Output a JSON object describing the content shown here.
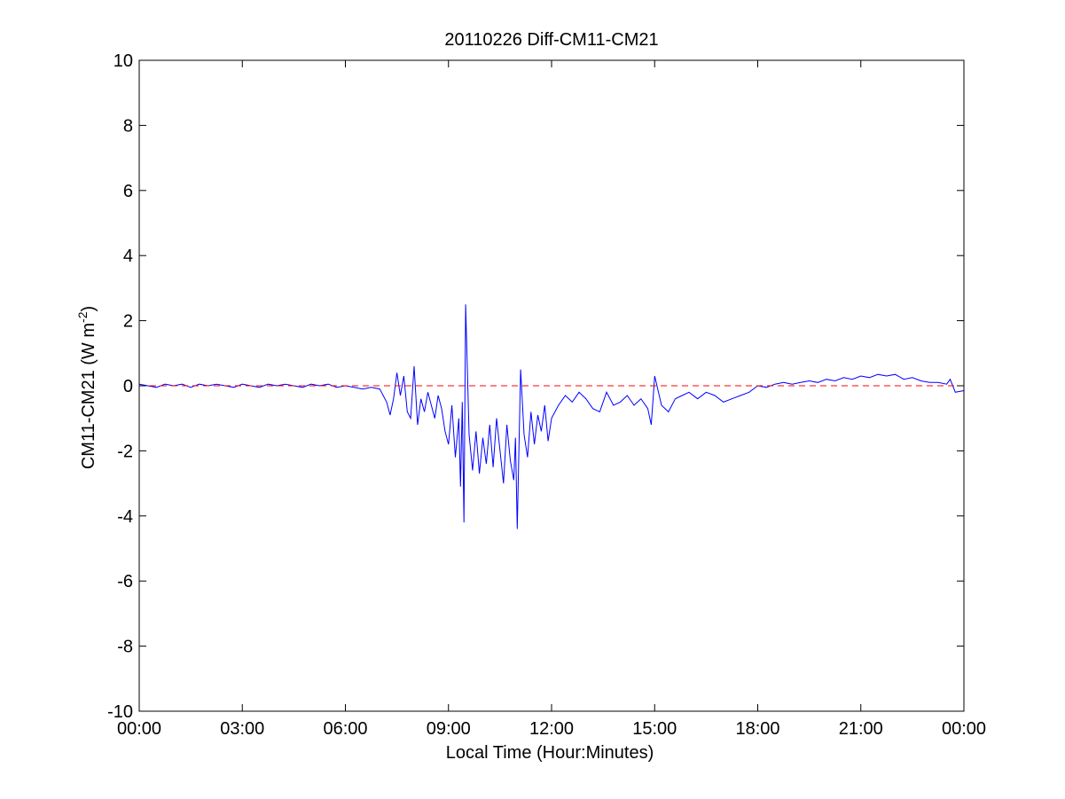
{
  "chart_data": {
    "type": "line",
    "title": "20110226 Diff-CM11-CM21",
    "xlabel": "Local Time (Hour:Minutes)",
    "ylabel_main": "CM11-CM21 (W m",
    "ylabel_sup": "-2",
    "ylabel_close": ")",
    "xlim": [
      0,
      24
    ],
    "ylim": [
      -10,
      10
    ],
    "x_ticks": [
      0,
      3,
      6,
      9,
      12,
      15,
      18,
      21,
      24
    ],
    "x_tick_labels": [
      "00:00",
      "03:00",
      "06:00",
      "09:00",
      "12:00",
      "15:00",
      "18:00",
      "21:00",
      "00:00"
    ],
    "y_ticks": [
      -10,
      -8,
      -6,
      -4,
      -2,
      0,
      2,
      4,
      6,
      8,
      10
    ],
    "y_tick_labels": [
      "-10",
      "-8",
      "-6",
      "-4",
      "-2",
      "0",
      "2",
      "4",
      "6",
      "8",
      "10"
    ],
    "grid": false,
    "series": [
      {
        "color": "#0000ff",
        "x": [
          0.0,
          0.25,
          0.5,
          0.75,
          1.0,
          1.25,
          1.5,
          1.75,
          2.0,
          2.25,
          2.5,
          2.75,
          3.0,
          3.25,
          3.5,
          3.75,
          4.0,
          4.25,
          4.5,
          4.75,
          5.0,
          5.25,
          5.5,
          5.75,
          6.0,
          6.25,
          6.5,
          6.75,
          7.0,
          7.1,
          7.2,
          7.3,
          7.4,
          7.5,
          7.6,
          7.7,
          7.8,
          7.9,
          8.0,
          8.1,
          8.2,
          8.3,
          8.4,
          8.5,
          8.6,
          8.7,
          8.8,
          8.9,
          9.0,
          9.1,
          9.2,
          9.3,
          9.35,
          9.4,
          9.45,
          9.5,
          9.6,
          9.7,
          9.8,
          9.9,
          10.0,
          10.1,
          10.2,
          10.3,
          10.4,
          10.5,
          10.6,
          10.7,
          10.8,
          10.9,
          10.95,
          11.0,
          11.1,
          11.2,
          11.3,
          11.4,
          11.5,
          11.6,
          11.7,
          11.8,
          11.9,
          12.0,
          12.2,
          12.4,
          12.6,
          12.8,
          13.0,
          13.2,
          13.4,
          13.6,
          13.8,
          14.0,
          14.2,
          14.4,
          14.6,
          14.8,
          14.9,
          15.0,
          15.2,
          15.4,
          15.6,
          15.8,
          16.0,
          16.25,
          16.5,
          16.75,
          17.0,
          17.25,
          17.5,
          17.75,
          18.0,
          18.25,
          18.5,
          18.75,
          19.0,
          19.25,
          19.5,
          19.75,
          20.0,
          20.25,
          20.5,
          20.75,
          21.0,
          21.25,
          21.5,
          21.75,
          22.0,
          22.25,
          22.5,
          22.75,
          23.0,
          23.25,
          23.5,
          23.6,
          23.75,
          24.0
        ],
        "y": [
          0.05,
          0.0,
          -0.05,
          0.05,
          0.0,
          0.05,
          -0.05,
          0.05,
          0.0,
          0.05,
          0.0,
          -0.05,
          0.05,
          0.0,
          -0.05,
          0.05,
          0.0,
          0.05,
          0.0,
          -0.05,
          0.05,
          0.0,
          0.05,
          -0.05,
          0.0,
          -0.05,
          -0.1,
          -0.05,
          -0.1,
          -0.3,
          -0.5,
          -0.9,
          -0.4,
          0.4,
          -0.3,
          0.3,
          -0.8,
          -1.0,
          0.6,
          -1.2,
          -0.4,
          -0.8,
          -0.2,
          -0.6,
          -1.0,
          -0.3,
          -0.7,
          -1.4,
          -1.8,
          -0.6,
          -2.2,
          -1.0,
          -3.1,
          -0.5,
          -4.2,
          2.5,
          -1.5,
          -2.6,
          -1.4,
          -2.7,
          -1.6,
          -2.4,
          -1.2,
          -2.5,
          -1.0,
          -2.0,
          -3.0,
          -1.2,
          -2.3,
          -2.9,
          -1.6,
          -4.4,
          0.5,
          -1.5,
          -2.2,
          -0.8,
          -1.8,
          -0.9,
          -1.4,
          -0.6,
          -1.7,
          -1.0,
          -0.6,
          -0.3,
          -0.5,
          -0.2,
          -0.4,
          -0.7,
          -0.8,
          -0.2,
          -0.6,
          -0.5,
          -0.3,
          -0.6,
          -0.4,
          -0.7,
          -1.2,
          0.3,
          -0.6,
          -0.8,
          -0.4,
          -0.3,
          -0.2,
          -0.4,
          -0.2,
          -0.3,
          -0.5,
          -0.4,
          -0.3,
          -0.2,
          0.0,
          -0.05,
          0.05,
          0.1,
          0.05,
          0.1,
          0.15,
          0.1,
          0.2,
          0.15,
          0.25,
          0.2,
          0.3,
          0.25,
          0.35,
          0.3,
          0.35,
          0.2,
          0.25,
          0.15,
          0.1,
          0.1,
          0.05,
          0.2,
          -0.2,
          -0.15
        ]
      },
      {
        "color": "#ff0000",
        "dashed": true,
        "x": [
          0,
          24
        ],
        "y": [
          0,
          0
        ]
      }
    ]
  }
}
